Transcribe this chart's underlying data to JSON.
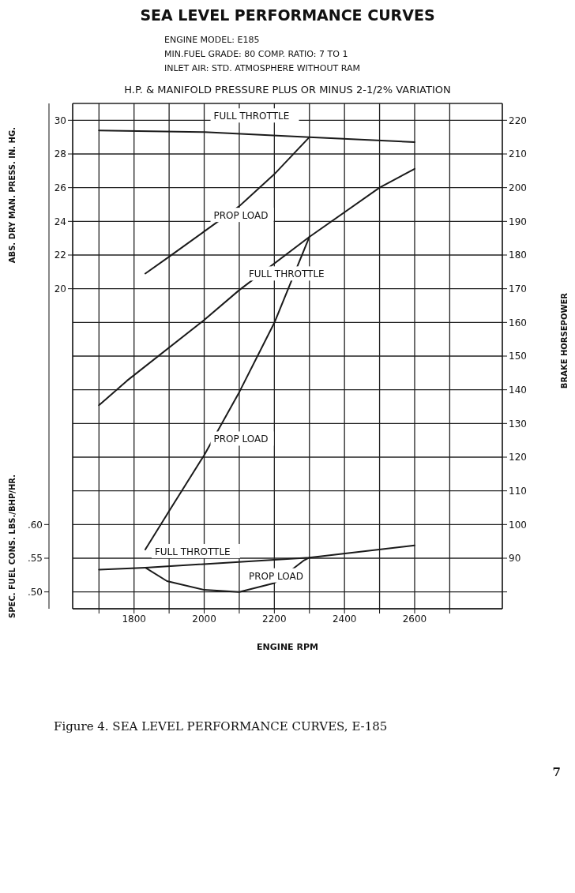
{
  "chart_data": {
    "type": "line",
    "title": "SEA LEVEL PERFORMANCE CURVES",
    "subtitle": "H.P. & MANIFOLD PRESSURE PLUS OR MINUS 2-1/2% VARIATION",
    "annotations": [
      "ENGINE MODEL: E185",
      "MIN.FUEL GRADE: 80     COMP. RATIO: 7 TO 1",
      "INLET AIR: STD. ATMOSPHERE WITHOUT RAM",
      "Figure 4.    SEA LEVEL PERFORMANCE CURVES, E-185",
      "7"
    ],
    "xlabel": "ENGINE RPM",
    "ylabel": "ABS. DRY MAN. PRESS. IN. HG.",
    "y2label": "BRAKE HORSEPOWER",
    "y3label": "SPEC. FUEL CONS. LBS./BHP/HR.",
    "xlim": [
      1625,
      2850
    ],
    "xticks": [
      {
        "value": 1700,
        "label": null
      },
      1800,
      {
        "value": 1900,
        "label": null
      },
      2000,
      {
        "value": 2100,
        "label": null
      },
      2200,
      {
        "value": 2300,
        "label": null
      },
      2400,
      {
        "value": 2500,
        "label": null
      },
      2600,
      {
        "value": 2700,
        "label": null
      }
    ],
    "ylim": [
      1,
      31
    ],
    "yticks": [
      20,
      22,
      24,
      26,
      28,
      30
    ],
    "y2lim": [
      75,
      225
    ],
    "y2ticks": [
      {
        "value": 80,
        "label": null
      },
      90,
      100,
      110,
      120,
      130,
      140,
      150,
      160,
      170,
      180,
      190,
      200,
      210,
      220
    ],
    "y3lim": [
      0.475,
      1.225
    ],
    "y3ticks": [
      {
        "value": 0.5,
        "label": ".50"
      },
      {
        "value": 0.55,
        "label": ".55"
      },
      {
        "value": 0.6,
        "label": ".60"
      }
    ],
    "grid": true,
    "marker": "none",
    "line_style": "solid",
    "series": [
      {
        "name": "FULL THROTTLE",
        "color": "#1a1a1a",
        "axis": "y",
        "x": [
          1700,
          2000,
          2300,
          2600
        ],
        "values": [
          29.4,
          29.3,
          29.0,
          28.7
        ]
      },
      {
        "name": "PROP LOAD",
        "color": "#1a1a1a",
        "axis": "y",
        "x": [
          1832,
          1900,
          2000,
          2100,
          2200,
          2300
        ],
        "values": [
          20.9,
          21.9,
          23.4,
          24.9,
          26.8,
          29.0
        ]
      },
      {
        "name": "FULL THROTTLE",
        "color": "#1a1a1a",
        "axis": "y2",
        "x": [
          1700,
          1780,
          2000,
          2100,
          2300,
          2500,
          2600
        ],
        "values": [
          135.4,
          142.7,
          160.7,
          169.6,
          185.4,
          200.0,
          205.6
        ]
      },
      {
        "name": "PROP LOAD",
        "color": "#1a1a1a",
        "axis": "y2",
        "x": [
          1832,
          1900,
          2000,
          2100,
          2200,
          2300
        ],
        "values": [
          92.6,
          104.0,
          120.6,
          139.3,
          159.9,
          185.4
        ]
      },
      {
        "name": "FULL THROTTLE",
        "color": "#1a1a1a",
        "axis": "y3",
        "x": [
          1700,
          1832,
          2300,
          2600
        ],
        "values": [
          0.533,
          0.536,
          0.551,
          0.569
        ]
      },
      {
        "name": "PROP LOAD",
        "color": "#1a1a1a",
        "axis": "y3",
        "x": [
          1832,
          1894,
          2000,
          2100,
          2200,
          2285,
          2300
        ],
        "values": [
          0.536,
          0.516,
          0.503,
          0.5,
          0.513,
          0.547,
          0.551
        ]
      }
    ]
  }
}
